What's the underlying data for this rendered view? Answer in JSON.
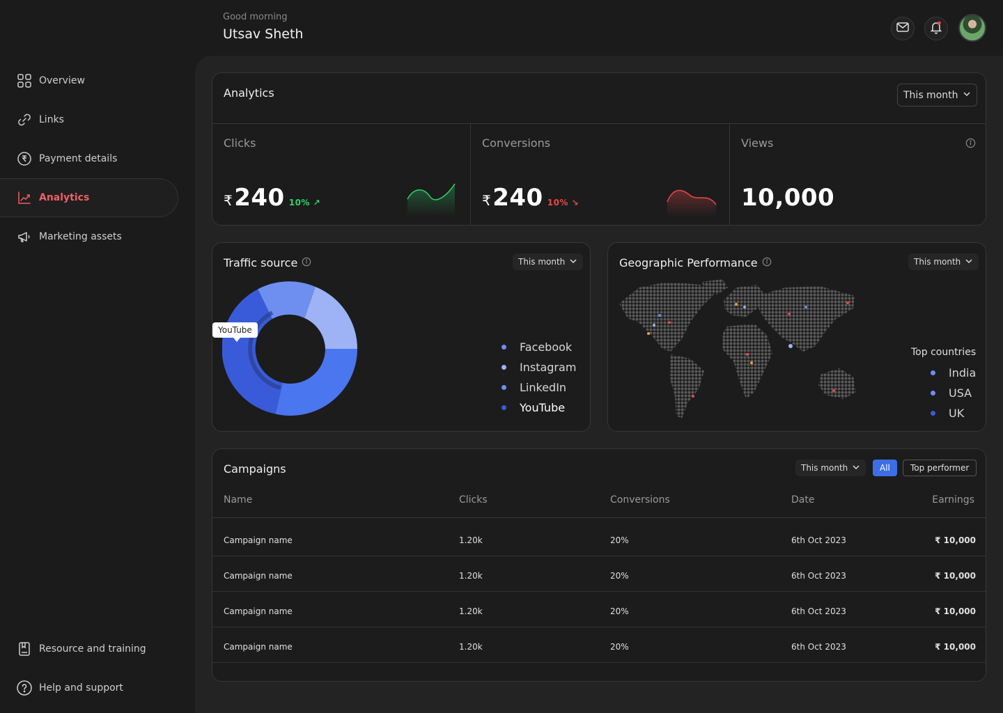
{
  "header": {
    "greeting": "Good morning",
    "user_name": "Utsav Sheth",
    "icons": [
      "mail-icon",
      "bell-icon"
    ],
    "notification_color": "#e5484d"
  },
  "sidebar": {
    "items": [
      {
        "label": "Overview",
        "icon": "grid-icon"
      },
      {
        "label": "Links",
        "icon": "link-icon"
      },
      {
        "label": "Payment details",
        "icon": "rupee-icon"
      },
      {
        "label": "Analytics",
        "icon": "chart-line-icon",
        "active": true
      },
      {
        "label": "Marketing assets",
        "icon": "megaphone-icon"
      }
    ],
    "bottom": [
      {
        "label": "Resource and training",
        "icon": "book-icon"
      },
      {
        "label": "Help and support",
        "icon": "help-icon"
      }
    ],
    "active_color": "#ef5f67"
  },
  "analytics": {
    "title": "Analytics",
    "period": "This month",
    "stats": [
      {
        "label": "Clicks",
        "currency": "₹",
        "value": "240",
        "delta": "10% ↗",
        "trend": "up",
        "color": "#2fd36b"
      },
      {
        "label": "Conversions",
        "currency": "₹",
        "value": "240",
        "delta": "10% ↘",
        "trend": "down",
        "color": "#e5484d"
      },
      {
        "label": "Views",
        "value": "10,000"
      }
    ]
  },
  "traffic": {
    "title": "Traffic source",
    "period": "This month",
    "tooltip": "YouTube",
    "legend": [
      {
        "label": "Facebook",
        "color": "#6f8ff0"
      },
      {
        "label": "Instagram",
        "color": "#9db3f5"
      },
      {
        "label": "LinkedIn",
        "color": "#6f8ff0"
      },
      {
        "label": "YouTube",
        "color": "#3a5bd9"
      }
    ]
  },
  "geo": {
    "title": "Geographic Performance",
    "period": "This month",
    "top_label": "Top countries",
    "countries": [
      {
        "label": "India",
        "color": "#6f8ff0"
      },
      {
        "label": "USA",
        "color": "#6f8ff0"
      },
      {
        "label": "UK",
        "color": "#3a5bd9"
      }
    ]
  },
  "campaigns": {
    "title": "Campaigns",
    "period": "This month",
    "filter_all": "All",
    "filter_top": "Top performer",
    "columns": [
      "Name",
      "Clicks",
      "Conversions",
      "Date",
      "Earnings"
    ],
    "rows": [
      [
        "Campaign name",
        "1.20k",
        "20%",
        "6th Oct 2023",
        "₹ 10,000"
      ],
      [
        "Campaign name",
        "1.20k",
        "20%",
        "6th Oct 2023",
        "₹ 10,000"
      ],
      [
        "Campaign name",
        "1.20k",
        "20%",
        "6th Oct 2023",
        "₹ 10,000"
      ],
      [
        "Campaign name",
        "1.20k",
        "20%",
        "6th Oct 2023",
        "₹ 10,000"
      ]
    ]
  }
}
